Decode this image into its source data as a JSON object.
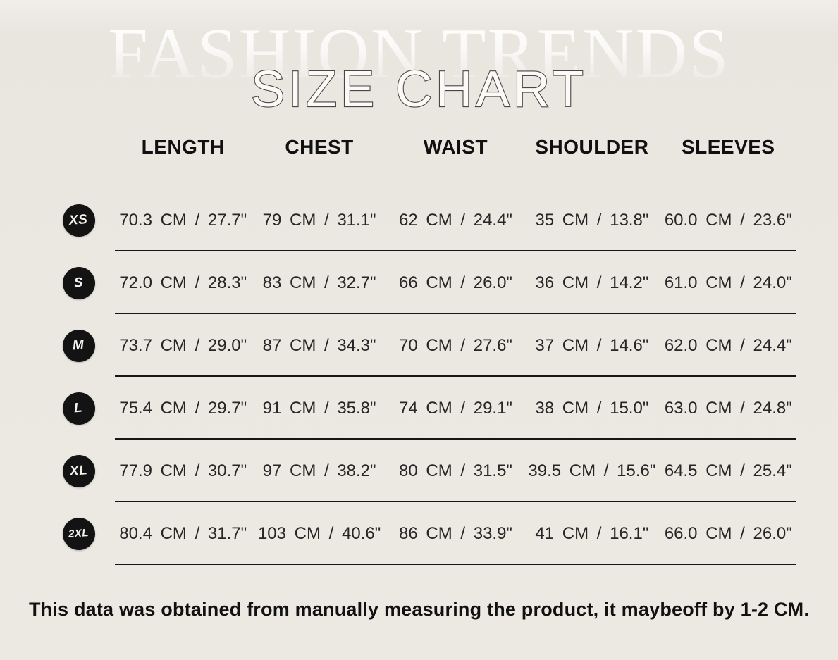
{
  "colors": {
    "background": "#ebe7e1",
    "badge": "#131313",
    "text": "#262626",
    "divider": "#161616",
    "title_fill": "#fbfaf7",
    "title_outline": "#474747"
  },
  "chart_data": {
    "type": "table",
    "watermark": "FASHION TRENDS",
    "title": "SIZE CHART",
    "columns": [
      "LENGTH",
      "CHEST",
      "WAIST",
      "SHOULDER",
      "SLEEVES"
    ],
    "sizes": [
      "XS",
      "S",
      "M",
      "L",
      "XL",
      "2XL"
    ],
    "units": [
      "CM",
      "inches"
    ],
    "rows": [
      {
        "size": "XS",
        "cells": [
          "70.3  CM  /  27.7\"",
          "79 CM /  31.1\"",
          "62 CM / 24.4\"",
          "35 CM /  13.8\"",
          "60.0  CM / 23.6\""
        ]
      },
      {
        "size": "S",
        "cells": [
          "72.0  CM  /  28.3\"",
          "83 CM /  32.7\"",
          "66 CM / 26.0\"",
          "36 CM /  14.2\"",
          "61.0  CM / 24.0\""
        ]
      },
      {
        "size": "M",
        "cells": [
          "73.7  CM  /  29.0\"",
          "87  CM /  34.3\"",
          "70 CM / 27.6\"",
          "37 CM /  14.6\"",
          "62.0  CM / 24.4\""
        ]
      },
      {
        "size": "L",
        "cells": [
          "75.4  CM  /  29.7\"",
          "91 CM /  35.8\"",
          "74 CM /  29.1\"",
          "38 CM /  15.0\"",
          "63.0  CM / 24.8\""
        ]
      },
      {
        "size": "XL",
        "cells": [
          "77.9  CM  /  30.7\"",
          "97 CM /  38.2\"",
          "80 CM /  31.5\"",
          "39.5  CM  /  15.6\"",
          "64.5  CM / 25.4\""
        ]
      },
      {
        "size": "2XL",
        "cells": [
          "80.4  CM  /  31.7\"",
          "103 CM / 40.6\"",
          "86 CM / 33.9\"",
          "41 CM /   16.1\"",
          "66.0  CM / 26.0\""
        ]
      }
    ],
    "note": "This data was obtained from manually measuring the product, it maybeoff by 1-2 CM."
  }
}
